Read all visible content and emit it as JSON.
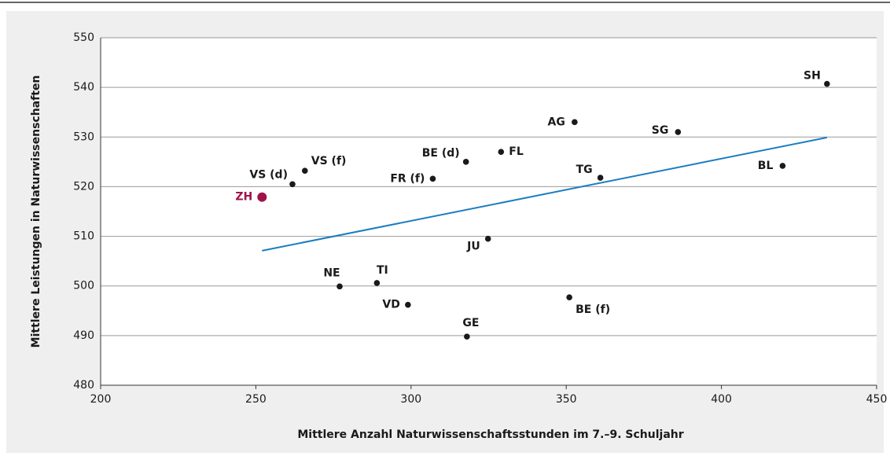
{
  "chart_data": {
    "type": "scatter",
    "xlabel": "Mittlere Anzahl Naturwissenschaftsstunden im 7.–9. Schuljahr",
    "ylabel": "Mittlere Leistungen in Naturwissenschaften",
    "xlim": [
      200,
      450
    ],
    "xticks": [
      200,
      250,
      300,
      350,
      400,
      450
    ],
    "ylim": [
      480,
      550
    ],
    "yticks": [
      480,
      490,
      500,
      510,
      520,
      530,
      540,
      550
    ],
    "grid": true,
    "series": [
      {
        "color": "#1a1a1a",
        "labels": [
          "SH",
          "AG",
          "SG",
          "FL",
          "BE (d)",
          "BL",
          "TG",
          "FR (f)",
          "VS (f)",
          "VS (d)",
          "JU",
          "NE",
          "TI",
          "VD",
          "GE",
          "BE (f)"
        ],
        "x": [
          434,
          352.7,
          386,
          329,
          317.7,
          419.7,
          361,
          307,
          265.8,
          261.8,
          324.8,
          277,
          289,
          299,
          318,
          351
        ],
        "values": [
          540.7,
          533,
          531,
          527,
          525,
          524.2,
          521.8,
          521.6,
          523.2,
          520.5,
          509.5,
          499.9,
          500.6,
          496.2,
          489.8,
          497.7
        ]
      },
      {
        "color": "#a0134a",
        "labels": [
          "ZH"
        ],
        "x": [
          252
        ],
        "values": [
          517.9
        ]
      }
    ],
    "trend": {
      "color": "#1a7dc0",
      "x": [
        252,
        434
      ],
      "values": [
        507.1,
        529.9
      ]
    }
  }
}
